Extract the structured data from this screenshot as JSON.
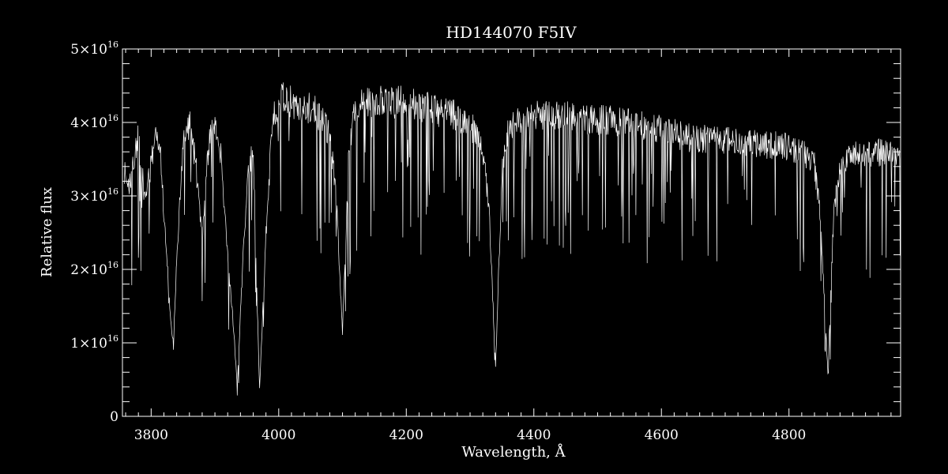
{
  "chart_data": {
    "type": "line",
    "title": "HD144070   F5IV",
    "xlabel": "Wavelength, Å",
    "ylabel": "Relative flux",
    "xlim": [
      3755,
      4975
    ],
    "ylim": [
      0,
      5e+16
    ],
    "x_ticks": [
      3800,
      4000,
      4200,
      4400,
      4600,
      4800
    ],
    "x_tick_labels": [
      "3800",
      "4000",
      "4200",
      "4400",
      "4600",
      "4800"
    ],
    "y_ticks": [
      0,
      1e+16,
      2e+16,
      3e+16,
      4e+16,
      5e+16
    ],
    "y_tick_labels": [
      {
        "mantissa": "0",
        "exponent": ""
      },
      {
        "mantissa": "1×10",
        "exponent": "16"
      },
      {
        "mantissa": "2×10",
        "exponent": "16"
      },
      {
        "mantissa": "3×10",
        "exponent": "16"
      },
      {
        "mantissa": "4×10",
        "exponent": "16"
      },
      {
        "mantissa": "5×10",
        "exponent": "16"
      }
    ],
    "grid": false,
    "colors": {
      "background": "#000000",
      "line": "#ffffff",
      "axes": "#ffffff"
    },
    "series": [
      {
        "x": [
          3758,
          3765,
          3772,
          3780,
          3790,
          3800,
          3808,
          3815,
          3822,
          3830,
          3835,
          3840,
          3850,
          3860,
          3870,
          3880,
          3890,
          3900,
          3910,
          3920,
          3930,
          3935,
          3940,
          3950,
          3960,
          3965,
          3970,
          3980,
          3990,
          4000,
          4010,
          4020,
          4030,
          4040,
          4050,
          4060,
          4070,
          4080,
          4090,
          4100,
          4110,
          4120,
          4140,
          4160,
          4180,
          4200,
          4220,
          4240,
          4260,
          4280,
          4300,
          4320,
          4330,
          4340,
          4350,
          4360,
          4380,
          4400,
          4420,
          4440,
          4460,
          4480,
          4500,
          4520,
          4540,
          4560,
          4580,
          4600,
          4620,
          4640,
          4660,
          4680,
          4700,
          4720,
          4740,
          4760,
          4780,
          4800,
          4820,
          4840,
          4850,
          4861,
          4870,
          4880,
          4900,
          4920,
          4940,
          4960,
          4975
        ],
        "y": [
          3.5e+16,
          3.3e+16,
          3.6e+16,
          4e+16,
          3.1e+16,
          3.6e+16,
          4.1e+16,
          3.7e+16,
          2.6e+16,
          1.5e+16,
          1e+16,
          2.2e+16,
          3.9e+16,
          4.2e+16,
          3.6e+16,
          2.5e+16,
          3.9e+16,
          4.2e+16,
          3.7e+16,
          2.3e+16,
          1.2e+16,
          4000000000000000.0,
          1.5e+16,
          3.3e+16,
          3.9e+16,
          2e+16,
          4000000000000000.0,
          2.6e+16,
          4.2e+16,
          4.5e+16,
          4.6e+16,
          4.5e+16,
          4.4e+16,
          4.45e+16,
          4.4e+16,
          4.35e+16,
          4.2e+16,
          4e+16,
          3.2e+16,
          1.2e+16,
          3.8e+16,
          4.4e+16,
          4.5e+16,
          4.5e+16,
          4.5e+16,
          4.5e+16,
          4.45e+16,
          4.4e+16,
          4.35e+16,
          4.3e+16,
          4.2e+16,
          3.8e+16,
          2.9e+16,
          7000000000000000.0,
          3.5e+16,
          4.1e+16,
          4.25e+16,
          4.3e+16,
          4.3e+16,
          4.3e+16,
          4.28e+16,
          4.25e+16,
          4.25e+16,
          4.23e+16,
          4.2e+16,
          4.18e+16,
          4.15e+16,
          4.1e+16,
          4.05e+16,
          4e+16,
          3.98e+16,
          3.95e+16,
          3.95e+16,
          3.92e+16,
          3.9e+16,
          3.9e+16,
          3.88e+16,
          3.85e+16,
          3.8e+16,
          3.6e+16,
          2.8e+16,
          6000000000000000.0,
          2.9e+16,
          3.6e+16,
          3.75e+16,
          3.75e+16,
          3.78e+16,
          3.78e+16,
          3.7e+16
        ]
      }
    ]
  }
}
